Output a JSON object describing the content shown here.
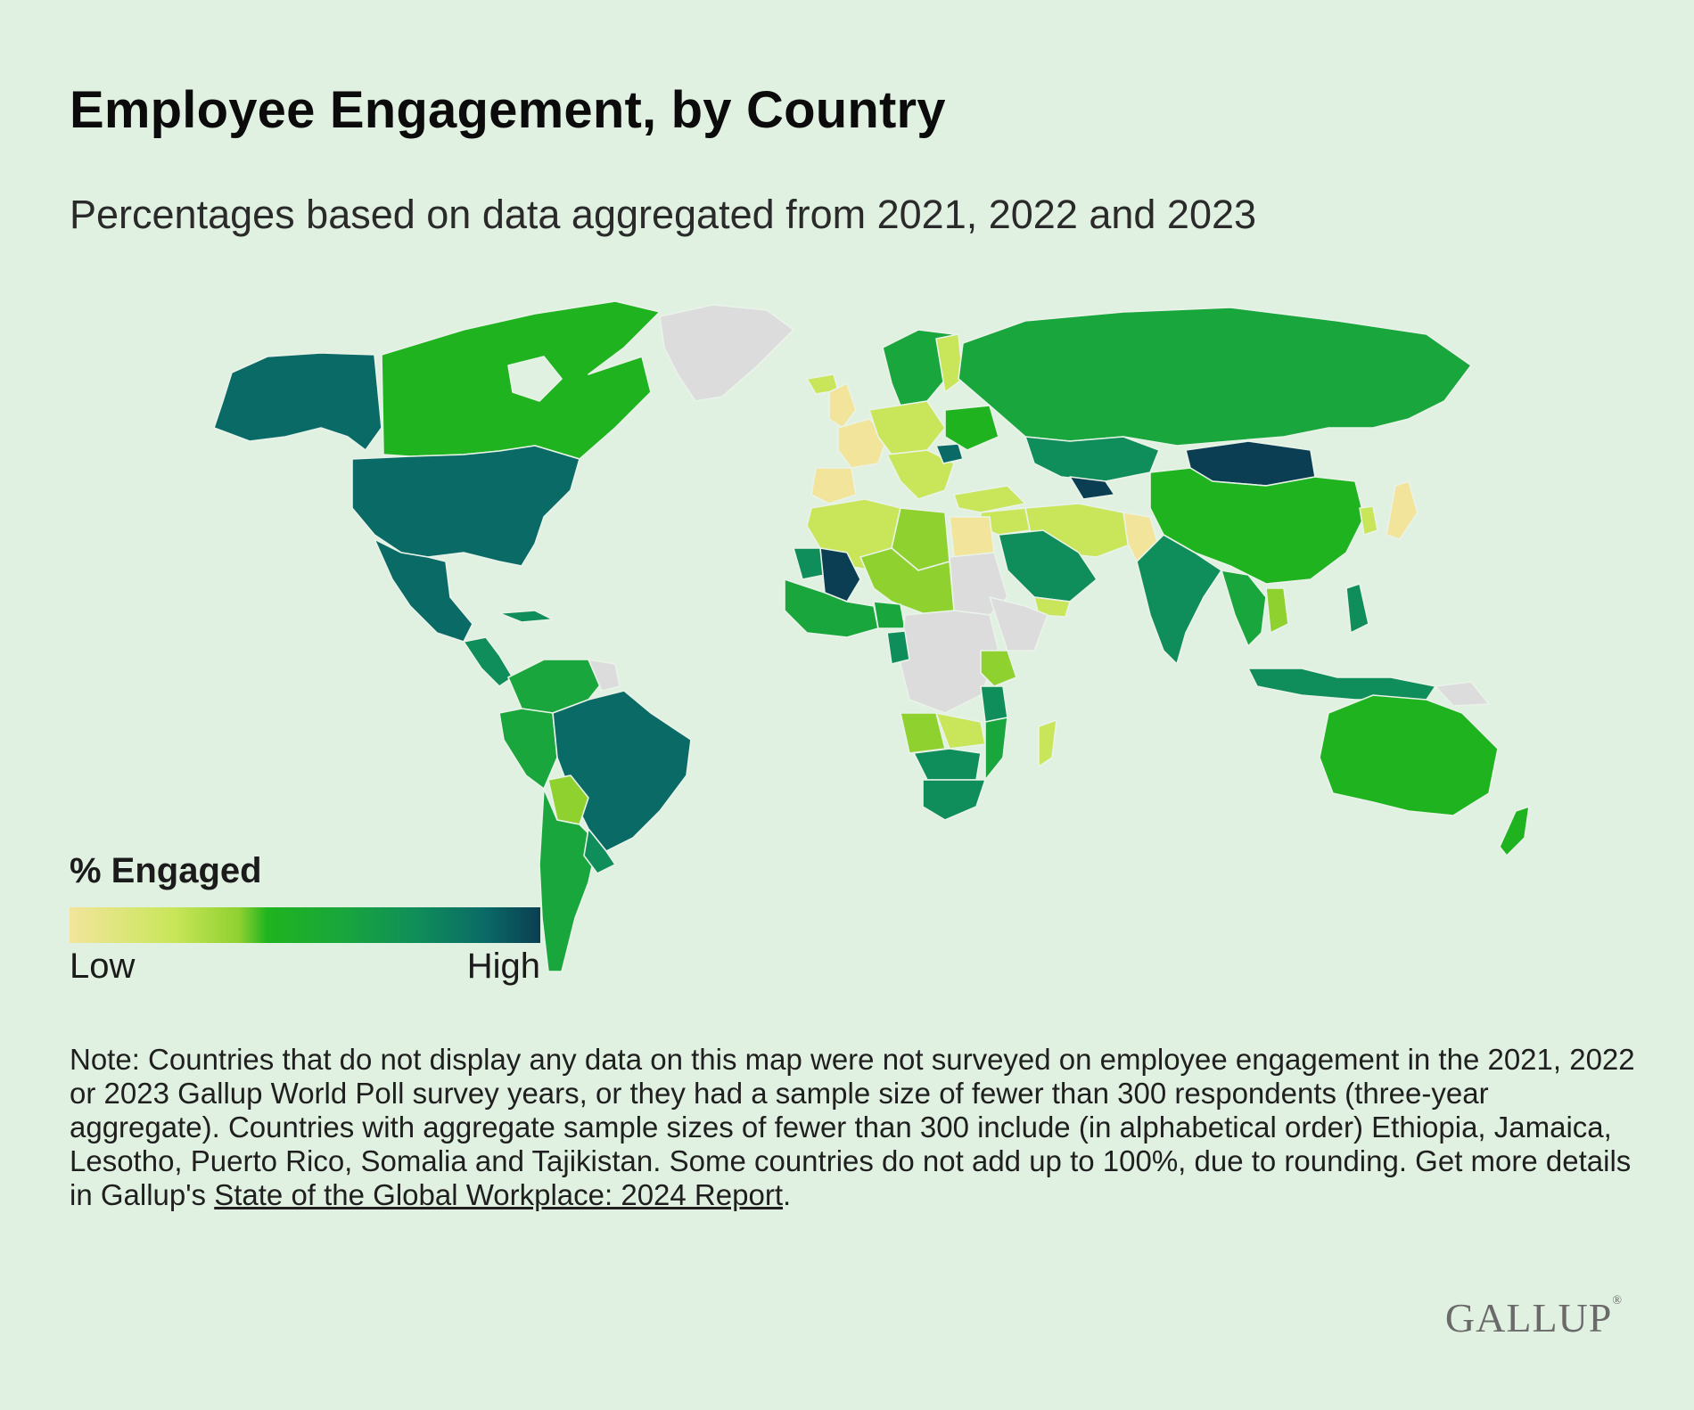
{
  "header": {
    "title": "Employee Engagement, by Country",
    "subtitle": "Percentages based on data aggregated from 2021, 2022 and 2023"
  },
  "legend": {
    "title": "% Engaged",
    "low_label": "Low",
    "high_label": "High",
    "colors": [
      "#f2e59b",
      "#c9e65a",
      "#8fd12f",
      "#1fb41f",
      "#19a63c",
      "#0f8d5a",
      "#0a6b66",
      "#0b3e52"
    ]
  },
  "note": {
    "text": "Note: Countries that do not display any data on this map were not surveyed on employee engagement in the 2021, 2022 or 2023 Gallup World Poll survey years, or they had a sample size of fewer than 300 respondents (three-year aggregate). Countries with aggregate sample sizes of fewer than 300 include (in alphabetical order) Ethiopia, Jamaica, Lesotho, Puerto Rico, Somalia and Tajikistan. Some countries do not add up to 100%, due to rounding. Get more details in Gallup's ",
    "link_text": "State of the Global Workplace: 2024 Report",
    "end": "."
  },
  "brand": {
    "logo_text": "GALLUP",
    "mark": "®"
  },
  "map_colors": {
    "no_data": "#dcdcdc",
    "low": "#f2e59b",
    "low_mid": "#c9e65a",
    "mid": "#8fd12f",
    "bright": "#1fb41f",
    "green": "#19a63c",
    "teal": "#0f8d5a",
    "deep_teal": "#0a6b66",
    "highest": "#0b3e52"
  }
}
